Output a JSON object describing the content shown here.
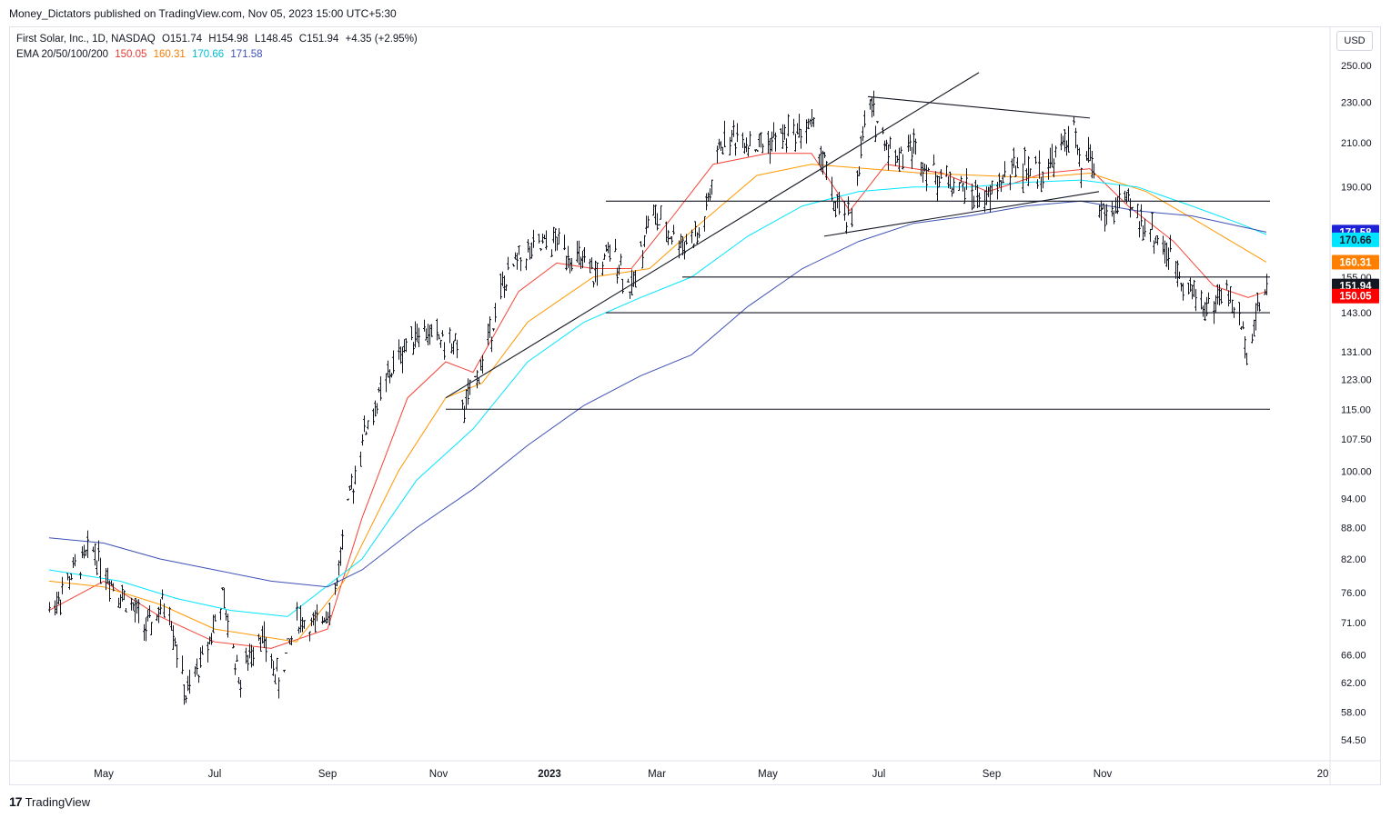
{
  "header": {
    "publisher": "Money_Dictators published on TradingView.com, Nov 05, 2023 15:00 UTC+5:30",
    "symbol": "First Solar, Inc., 1D, NASDAQ",
    "ohlc": {
      "open_label": "O",
      "open": "151.74",
      "high_label": "H",
      "high": "154.98",
      "low_label": "L",
      "low": "148.45",
      "close_label": "C",
      "close": "151.94",
      "change": "+4.35 (+2.95%)"
    },
    "ema_label": "EMA 20/50/100/200",
    "ema_values": [
      {
        "value": "150.05",
        "color": "#e53935"
      },
      {
        "value": "160.31",
        "color": "#f57c00"
      },
      {
        "value": "170.66",
        "color": "#00bcd4"
      },
      {
        "value": "171.58",
        "color": "#3f51b5"
      }
    ]
  },
  "currency": "USD",
  "footer": {
    "brand": "TradingView",
    "logo_glyph": "17"
  },
  "chart_data": {
    "type": "ohlc",
    "log_scale": true,
    "y_ticks": [
      "250.00",
      "230.00",
      "210.00",
      "190.00",
      "155.00",
      "143.00",
      "131.00",
      "123.00",
      "115.00",
      "107.50",
      "100.00",
      "94.00",
      "88.00",
      "82.00",
      "76.00",
      "71.00",
      "66.00",
      "62.00",
      "58.00",
      "54.50"
    ],
    "x_ticks": [
      "May",
      "Jul",
      "Sep",
      "Nov",
      "2023",
      "Mar",
      "May",
      "Jul",
      "Sep",
      "Nov",
      "20"
    ],
    "price_tags": [
      {
        "label": "171.58",
        "value": 171.58,
        "bg": "#1e22d6",
        "fg": "#ffffff"
      },
      {
        "label": "170.66",
        "value": 168.6,
        "bg": "#00e5ff",
        "fg": "#131722"
      },
      {
        "label": "160.31",
        "value": 160.31,
        "bg": "#ff7f00",
        "fg": "#ffffff"
      },
      {
        "label": "151.94",
        "value": 151.94,
        "bg": "#131722",
        "fg": "#ffffff"
      },
      {
        "label": "150.05",
        "value": 148.5,
        "bg": "#ff0000",
        "fg": "#ffffff"
      }
    ],
    "bar_anchors": [
      [
        "2022-04-01",
        73
      ],
      [
        "2022-04-15",
        80
      ],
      [
        "2022-04-25",
        84
      ],
      [
        "2022-05-05",
        78
      ],
      [
        "2022-05-15",
        74
      ],
      [
        "2022-05-25",
        70
      ],
      [
        "2022-06-05",
        75
      ],
      [
        "2022-06-15",
        60
      ],
      [
        "2022-06-25",
        66
      ],
      [
        "2022-07-05",
        75
      ],
      [
        "2022-07-15",
        62
      ],
      [
        "2022-07-25",
        70
      ],
      [
        "2022-08-05",
        62
      ],
      [
        "2022-08-15",
        72
      ],
      [
        "2022-08-25",
        70
      ],
      [
        "2022-09-05",
        76
      ],
      [
        "2022-09-10",
        88
      ],
      [
        "2022-09-20",
        108
      ],
      [
        "2022-10-01",
        120
      ],
      [
        "2022-10-10",
        130
      ],
      [
        "2022-10-20",
        138
      ],
      [
        "2022-11-01",
        135
      ],
      [
        "2022-11-10",
        132
      ],
      [
        "2022-11-15",
        115
      ],
      [
        "2022-11-25",
        128
      ],
      [
        "2022-12-05",
        150
      ],
      [
        "2022-12-15",
        162
      ],
      [
        "2022-12-25",
        165
      ],
      [
        "2023-01-05",
        168
      ],
      [
        "2023-01-15",
        162
      ],
      [
        "2023-01-25",
        155
      ],
      [
        "2023-02-05",
        165
      ],
      [
        "2023-02-15",
        150
      ],
      [
        "2023-02-25",
        180
      ],
      [
        "2023-03-05",
        172
      ],
      [
        "2023-03-15",
        168
      ],
      [
        "2023-03-25",
        170
      ],
      [
        "2023-04-05",
        210
      ],
      [
        "2023-04-15",
        214
      ],
      [
        "2023-04-25",
        208
      ],
      [
        "2023-05-05",
        212
      ],
      [
        "2023-05-15",
        215
      ],
      [
        "2023-05-25",
        218
      ],
      [
        "2023-06-01",
        200
      ],
      [
        "2023-06-05",
        185
      ],
      [
        "2023-06-10",
        178
      ],
      [
        "2023-06-15",
        176
      ],
      [
        "2023-06-20",
        200
      ],
      [
        "2023-06-25",
        230
      ],
      [
        "2023-07-05",
        210
      ],
      [
        "2023-07-10",
        204
      ],
      [
        "2023-07-20",
        208
      ],
      [
        "2023-07-30",
        196
      ],
      [
        "2023-08-10",
        192
      ],
      [
        "2023-08-20",
        188
      ],
      [
        "2023-08-30",
        184
      ],
      [
        "2023-09-05",
        192
      ],
      [
        "2023-09-15",
        200
      ],
      [
        "2023-09-25",
        196
      ],
      [
        "2023-10-01",
        198
      ],
      [
        "2023-10-10",
        208
      ],
      [
        "2023-10-15",
        220
      ],
      [
        "2023-10-20",
        195
      ],
      [
        "2023-10-25",
        206
      ],
      [
        "2023-10-30",
        182
      ],
      [
        "2023-11-05",
        176
      ],
      [
        "2023-11-10",
        185
      ],
      [
        "2023-11-20",
        178
      ],
      [
        "2023-11-30",
        170
      ],
      [
        "2023-12-10",
        160
      ],
      [
        "2023-12-20",
        150
      ],
      [
        "2023-12-30",
        144
      ],
      [
        "2024-01-05",
        150
      ],
      [
        "2024-01-10",
        148
      ],
      [
        "2024-01-15",
        140
      ],
      [
        "2024-01-20",
        132
      ],
      [
        "2024-01-25",
        145
      ],
      [
        "2024-01-30",
        151.94
      ]
    ],
    "ema_series": [
      {
        "name": "EMA 20",
        "color": "#f44336",
        "points": [
          [
            "2022-04-01",
            73
          ],
          [
            "2022-05-01",
            78
          ],
          [
            "2022-06-01",
            72
          ],
          [
            "2022-07-01",
            68
          ],
          [
            "2022-08-01",
            67
          ],
          [
            "2022-09-01",
            70
          ],
          [
            "2022-09-20",
            90
          ],
          [
            "2022-10-15",
            118
          ],
          [
            "2022-11-05",
            128
          ],
          [
            "2022-11-20",
            125
          ],
          [
            "2022-12-15",
            150
          ],
          [
            "2023-01-05",
            160
          ],
          [
            "2023-01-25",
            158
          ],
          [
            "2023-02-15",
            158
          ],
          [
            "2023-03-10",
            178
          ],
          [
            "2023-04-01",
            200
          ],
          [
            "2023-05-01",
            205
          ],
          [
            "2023-05-25",
            205
          ],
          [
            "2023-06-15",
            180
          ],
          [
            "2023-07-05",
            200
          ],
          [
            "2023-08-05",
            196
          ],
          [
            "2023-08-30",
            188
          ],
          [
            "2023-09-30",
            196
          ],
          [
            "2023-10-25",
            198
          ],
          [
            "2023-11-15",
            182
          ],
          [
            "2023-12-10",
            168
          ],
          [
            "2024-01-01",
            152
          ],
          [
            "2024-01-20",
            148
          ],
          [
            "2024-01-30",
            150.05
          ]
        ]
      },
      {
        "name": "EMA 50",
        "color": "#ff9800",
        "points": [
          [
            "2022-04-01",
            78
          ],
          [
            "2022-05-01",
            77
          ],
          [
            "2022-06-01",
            74
          ],
          [
            "2022-07-01",
            70
          ],
          [
            "2022-08-15",
            68
          ],
          [
            "2022-09-10",
            78
          ],
          [
            "2022-10-10",
            100
          ],
          [
            "2022-11-05",
            118
          ],
          [
            "2022-11-25",
            122
          ],
          [
            "2022-12-20",
            140
          ],
          [
            "2023-01-25",
            155
          ],
          [
            "2023-02-25",
            158
          ],
          [
            "2023-03-25",
            175
          ],
          [
            "2023-04-25",
            195
          ],
          [
            "2023-05-25",
            200
          ],
          [
            "2023-06-25",
            198
          ],
          [
            "2023-07-25",
            196
          ],
          [
            "2023-08-25",
            195
          ],
          [
            "2023-09-25",
            194
          ],
          [
            "2023-10-25",
            196
          ],
          [
            "2023-11-25",
            188
          ],
          [
            "2023-12-25",
            175
          ],
          [
            "2024-01-30",
            160.31
          ]
        ]
      },
      {
        "name": "EMA 100",
        "color": "#00e5ff",
        "points": [
          [
            "2022-04-01",
            80
          ],
          [
            "2022-05-10",
            78
          ],
          [
            "2022-06-10",
            75
          ],
          [
            "2022-07-10",
            73
          ],
          [
            "2022-08-10",
            72
          ],
          [
            "2022-09-20",
            82
          ],
          [
            "2022-10-20",
            98
          ],
          [
            "2022-11-20",
            110
          ],
          [
            "2022-12-20",
            128
          ],
          [
            "2023-01-20",
            140
          ],
          [
            "2023-02-20",
            148
          ],
          [
            "2023-03-20",
            155
          ],
          [
            "2023-04-20",
            170
          ],
          [
            "2023-05-20",
            182
          ],
          [
            "2023-06-20",
            188
          ],
          [
            "2023-07-20",
            190
          ],
          [
            "2023-08-20",
            190
          ],
          [
            "2023-09-20",
            192
          ],
          [
            "2023-10-20",
            193
          ],
          [
            "2023-11-20",
            190
          ],
          [
            "2023-12-20",
            182
          ],
          [
            "2024-01-15",
            175
          ],
          [
            "2024-01-30",
            170.66
          ]
        ]
      },
      {
        "name": "EMA 200",
        "color": "#3f51b5",
        "points": [
          [
            "2022-04-01",
            86
          ],
          [
            "2022-05-01",
            85
          ],
          [
            "2022-06-01",
            82
          ],
          [
            "2022-07-01",
            80
          ],
          [
            "2022-08-01",
            78
          ],
          [
            "2022-09-01",
            77
          ],
          [
            "2022-09-20",
            80
          ],
          [
            "2022-10-20",
            88
          ],
          [
            "2022-11-20",
            96
          ],
          [
            "2022-12-20",
            106
          ],
          [
            "2023-01-20",
            116
          ],
          [
            "2023-02-20",
            124
          ],
          [
            "2023-03-20",
            130
          ],
          [
            "2023-04-20",
            145
          ],
          [
            "2023-05-20",
            158
          ],
          [
            "2023-06-20",
            168
          ],
          [
            "2023-07-20",
            175
          ],
          [
            "2023-08-20",
            178
          ],
          [
            "2023-09-20",
            182
          ],
          [
            "2023-10-20",
            184
          ],
          [
            "2023-11-20",
            180
          ],
          [
            "2023-12-20",
            178
          ],
          [
            "2024-01-30",
            171.58
          ]
        ]
      }
    ],
    "drawings": [
      {
        "name": "support-line-143",
        "from": [
          "2023-02-01",
          143
        ],
        "to": [
          "2024-02-01",
          143
        ]
      },
      {
        "name": "support-line-155",
        "from": [
          "2023-03-15",
          155
        ],
        "to": [
          "2024-02-01",
          155
        ]
      },
      {
        "name": "resistance-line-184",
        "from": [
          "2023-02-01",
          184
        ],
        "to": [
          "2024-02-01",
          184
        ]
      },
      {
        "name": "support-line-115",
        "from": [
          "2022-11-05",
          115
        ],
        "to": [
          "2024-02-01",
          115
        ]
      },
      {
        "name": "rising-trendline",
        "from": [
          "2022-11-05",
          118
        ],
        "to": [
          "2023-08-25",
          246
        ]
      },
      {
        "name": "wedge-upper-line",
        "from": [
          "2023-06-25",
          233
        ],
        "to": [
          "2023-10-25",
          222
        ]
      },
      {
        "name": "wedge-lower-line",
        "from": [
          "2023-06-01",
          170
        ],
        "to": [
          "2023-10-30",
          188
        ]
      }
    ]
  }
}
